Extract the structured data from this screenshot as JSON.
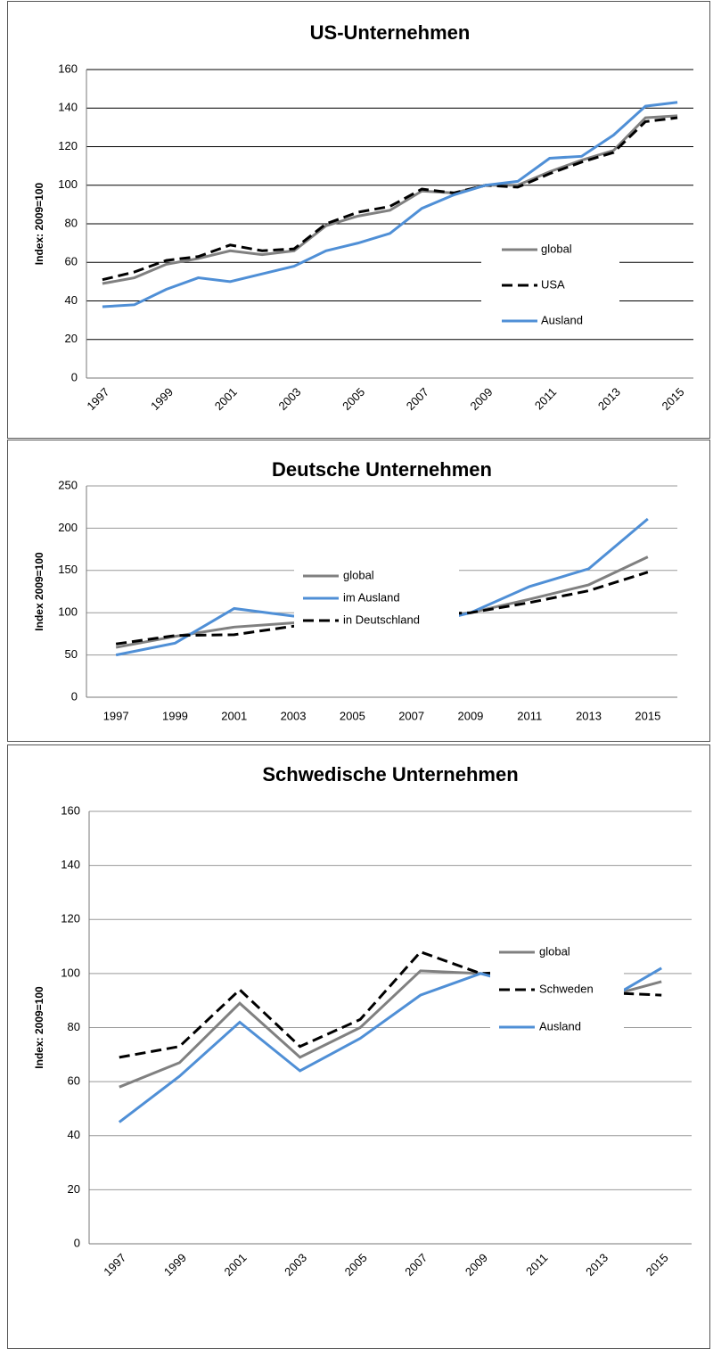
{
  "chart_data": [
    {
      "type": "line",
      "title": "US-Unternehmen",
      "y_label": "Index: 2009=100",
      "categories": [
        "1997",
        null,
        "1999",
        null,
        "2001",
        null,
        "2003",
        null,
        "2005",
        null,
        "2007",
        null,
        "2009",
        null,
        "2011",
        null,
        "2013",
        null,
        "2015"
      ],
      "series": [
        {
          "name": "global",
          "color": "#808080",
          "style": "solid",
          "values": [
            49,
            52,
            59,
            62,
            66,
            64,
            66,
            79,
            84,
            87,
            97,
            96,
            100,
            100,
            107,
            113,
            118,
            135,
            136
          ]
        },
        {
          "name": "USA",
          "color": "#000000",
          "style": "dashed",
          "values": [
            51,
            55,
            61,
            63,
            69,
            66,
            67,
            80,
            86,
            89,
            98,
            96,
            100,
            99,
            106,
            112,
            117,
            133,
            135
          ]
        },
        {
          "name": "Ausland",
          "color": "#4f8fd6",
          "style": "solid",
          "values": [
            37,
            38,
            46,
            52,
            50,
            54,
            58,
            66,
            70,
            75,
            88,
            95,
            100,
            102,
            114,
            115,
            126,
            141,
            143
          ]
        }
      ],
      "ylim": [
        0,
        160
      ],
      "yticks": [
        0,
        20,
        40,
        60,
        80,
        100,
        120,
        140,
        160
      ],
      "grid": true
    },
    {
      "type": "line",
      "title": "Deutsche Unternehmen",
      "y_label": "Index 2009=100",
      "categories": [
        "1997",
        "1999",
        "2001",
        "2003",
        "2005",
        "2007",
        "2009",
        "2011",
        "2013",
        "2015"
      ],
      "series": [
        {
          "name": "global",
          "color": "#808080",
          "style": "solid",
          "values": [
            59,
            72,
            83,
            88,
            92,
            93,
            100,
            116,
            133,
            166
          ]
        },
        {
          "name": "im Ausland",
          "color": "#4f8fd6",
          "style": "solid",
          "values": [
            50,
            64,
            105,
            96,
            100,
            83,
            100,
            131,
            152,
            211
          ]
        },
        {
          "name": "in Deutschland",
          "color": "#000000",
          "style": "dashed",
          "values": [
            63,
            73,
            74,
            84,
            89,
            97,
            100,
            112,
            126,
            148
          ]
        }
      ],
      "ylim": [
        0,
        250
      ],
      "yticks": [
        0,
        50,
        100,
        150,
        200,
        250
      ],
      "grid": true
    },
    {
      "type": "line",
      "title": "Schwedische Unternehmen",
      "y_label": "Index: 2009=100",
      "categories": [
        "1997",
        "1999",
        "2001",
        "2003",
        "2005",
        "2007",
        "2009",
        "2011",
        "2013",
        "2015"
      ],
      "series": [
        {
          "name": "global",
          "color": "#808080",
          "style": "solid",
          "values": [
            58,
            67,
            89,
            69,
            80,
            101,
            100,
            98,
            91,
            97
          ]
        },
        {
          "name": "Schweden",
          "color": "#000000",
          "style": "dashed",
          "values": [
            69,
            73,
            94,
            73,
            83,
            108,
            100,
            101,
            93,
            92
          ]
        },
        {
          "name": "Ausland",
          "color": "#4f8fd6",
          "style": "solid",
          "values": [
            45,
            62,
            82,
            64,
            76,
            92,
            100,
            94,
            89,
            102
          ]
        }
      ],
      "ylim": [
        0,
        160
      ],
      "yticks": [
        0,
        20,
        40,
        60,
        80,
        100,
        120,
        140,
        160
      ],
      "grid": true
    }
  ]
}
